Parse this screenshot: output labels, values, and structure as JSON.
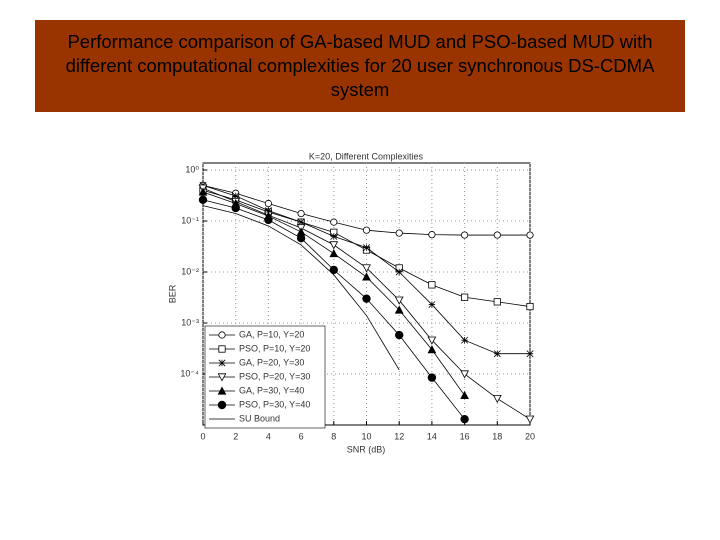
{
  "header": {
    "title": "Performance comparison of GA-based MUD and PSO-based MUD with different computational complexities for 20 user synchronous DS-CDMA system"
  },
  "chart_data": {
    "type": "line",
    "title": "K=20, Different Complexities",
    "x_label": "SNR (dB)",
    "y_label": "BER",
    "x": [
      0,
      2,
      4,
      6,
      8,
      10,
      12,
      14,
      16,
      18,
      20
    ],
    "series": [
      {
        "name": "GA, P=10, Y=20",
        "color": "#000000",
        "marker": "circle",
        "values": [
          0.5,
          0.35,
          0.22,
          0.14,
          0.095,
          0.066,
          0.058,
          0.054,
          0.053,
          0.053,
          0.053
        ]
      },
      {
        "name": "PSO, P=10, Y=20",
        "color": "#000000",
        "marker": "square",
        "values": [
          0.4,
          0.26,
          0.15,
          0.095,
          0.06,
          0.027,
          0.012,
          0.0056,
          0.0032,
          0.0026,
          0.0021
        ]
      },
      {
        "name": "GA, P=20, Y=30",
        "color": "#000000",
        "marker": "star",
        "values": [
          0.5,
          0.31,
          0.16,
          0.095,
          0.05,
          0.03,
          0.01,
          0.0023,
          0.00046,
          0.00025,
          0.00025
        ]
      },
      {
        "name": "PSO, P=20, Y=30",
        "color": "#000000",
        "marker": "triangle-down",
        "values": [
          0.44,
          0.24,
          0.13,
          0.073,
          0.034,
          0.012,
          0.0028,
          0.00046,
          0.0001,
          3.3e-05,
          1.3e-05
        ]
      },
      {
        "name": "GA, P=30, Y=40",
        "color": "#000000",
        "marker": "triangle-up",
        "values": [
          0.37,
          0.22,
          0.125,
          0.061,
          0.023,
          0.008,
          0.0018,
          0.0003,
          3.8e-05,
          null,
          null
        ]
      },
      {
        "name": "PSO, P=30, Y=40",
        "color": "#000000",
        "marker": "dot",
        "values": [
          0.26,
          0.18,
          0.105,
          0.046,
          0.011,
          0.003,
          0.00058,
          8.5e-05,
          1.3e-05,
          null,
          null
        ]
      },
      {
        "name": "SU Bound",
        "color": "#000000",
        "marker": "none",
        "values": [
          0.2,
          0.14,
          0.08,
          0.034,
          0.0088,
          0.0014,
          0.00012,
          null,
          null,
          null,
          null
        ]
      }
    ],
    "xlim": [
      0,
      20
    ],
    "xticks": [
      0,
      2,
      4,
      6,
      8,
      10,
      12,
      14,
      16,
      18,
      20
    ],
    "ylim": [
      1e-05,
      1
    ],
    "log_y": true,
    "yticks": [
      {
        "value": 1,
        "label": "10⁰"
      },
      {
        "value": 0.1,
        "label": "10⁻¹"
      },
      {
        "value": 0.01,
        "label": "10⁻²"
      },
      {
        "value": 0.001,
        "label": "10⁻³"
      },
      {
        "value": 0.0001,
        "label": "10⁻⁴"
      }
    ],
    "grid": true,
    "legend": "lower-left"
  }
}
